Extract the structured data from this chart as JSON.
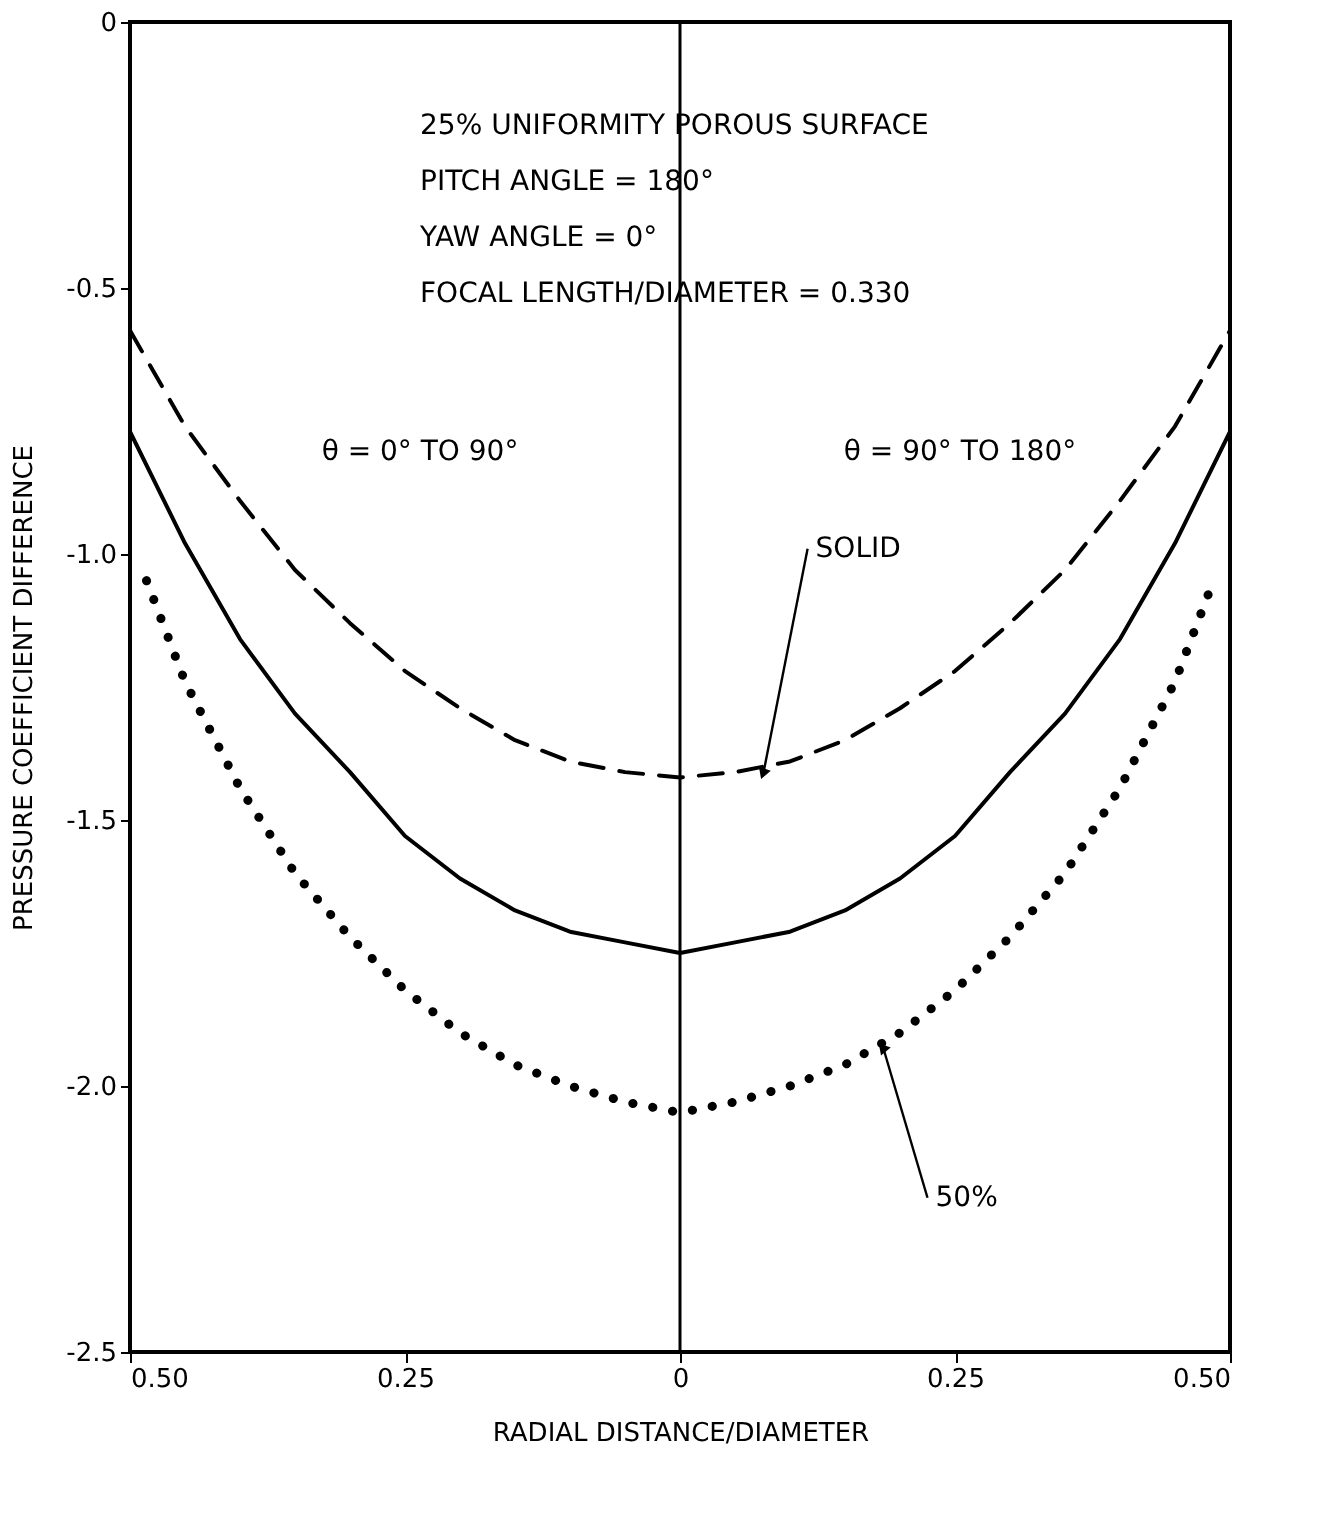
{
  "chart_data": {
    "type": "line",
    "xlabel": "RADIAL DISTANCE/DIAMETER",
    "ylabel": "PRESSURE COEFFICIENT DIFFERENCE",
    "xlim": [
      -0.5,
      0.5
    ],
    "ylim": [
      -2.5,
      0
    ],
    "xticks": [
      {
        "value": -0.5,
        "label": "0.50"
      },
      {
        "value": -0.25,
        "label": "0.25"
      },
      0,
      {
        "value": 0.25,
        "label": "0.25"
      },
      {
        "value": 0.5,
        "label": "0.50"
      }
    ],
    "yticks": [
      {
        "value": -2.5,
        "label": "-2.5"
      },
      {
        "value": -2,
        "label": "-2.0"
      },
      {
        "value": -1.5,
        "label": "-1.5"
      },
      {
        "value": -1,
        "label": "-1.0"
      },
      {
        "value": -0.5,
        "label": "-0.5"
      },
      0
    ],
    "grid": false,
    "marker": "none",
    "series": [
      {
        "color": "#000000",
        "line_style": "dashed",
        "x": [
          -0.5,
          -0.45,
          -0.4,
          -0.35,
          -0.3,
          -0.25,
          -0.2,
          -0.15,
          -0.1,
          -0.05,
          0,
          0.05,
          0.1,
          0.15,
          0.2,
          0.25,
          0.3,
          0.35,
          0.4,
          0.45,
          0.5
        ],
        "values": [
          -0.58,
          -0.76,
          -0.9,
          -1.03,
          -1.13,
          -1.22,
          -1.29,
          -1.35,
          -1.39,
          -1.41,
          -1.42,
          -1.41,
          -1.39,
          -1.35,
          -1.29,
          -1.22,
          -1.13,
          -1.03,
          -0.9,
          -0.76,
          -0.58
        ]
      },
      {
        "color": "#000000",
        "line_style": "solid",
        "x": [
          -0.5,
          -0.45,
          -0.4,
          -0.35,
          -0.3,
          -0.25,
          -0.2,
          -0.15,
          -0.1,
          -0.05,
          0,
          0.05,
          0.1,
          0.15,
          0.2,
          0.25,
          0.3,
          0.35,
          0.4,
          0.45,
          0.5
        ],
        "values": [
          -0.77,
          -0.98,
          -1.16,
          -1.3,
          -1.41,
          -1.53,
          -1.61,
          -1.67,
          -1.71,
          -1.73,
          -1.75,
          -1.73,
          -1.71,
          -1.67,
          -1.61,
          -1.53,
          -1.41,
          -1.3,
          -1.16,
          -0.98,
          -0.77
        ]
      },
      {
        "color": "#000000",
        "line_style": "dotted",
        "x": [
          -0.485,
          -0.45,
          -0.4,
          -0.35,
          -0.3,
          -0.25,
          -0.2,
          -0.15,
          -0.1,
          -0.05,
          0,
          0.05,
          0.1,
          0.15,
          0.2,
          0.25,
          0.3,
          0.35,
          0.4,
          0.45,
          0.485
        ],
        "values": [
          -1.05,
          -1.24,
          -1.44,
          -1.6,
          -1.72,
          -1.82,
          -1.9,
          -1.96,
          -2.0,
          -2.03,
          -2.05,
          -2.03,
          -2.0,
          -1.96,
          -1.9,
          -1.82,
          -1.72,
          -1.6,
          -1.44,
          -1.24,
          -1.05
        ]
      }
    ],
    "ref_lines": [
      {
        "axis": "x",
        "value": 0,
        "color": "#000000"
      }
    ],
    "annotations": [
      "25% UNIFORMITY POROUS SURFACE",
      "PITCH ANGLE = 180°",
      "YAW ANGLE  = 0°",
      "FOCAL LENGTH/DIAMETER = 0.330",
      "θ = 0° TO 90°",
      "θ = 90° TO 180°",
      {
        "text": "SOLID",
        "x": 0.076,
        "y": -1.41
      },
      {
        "text": "50%",
        "x": 0.185,
        "y": -1.93
      }
    ]
  }
}
